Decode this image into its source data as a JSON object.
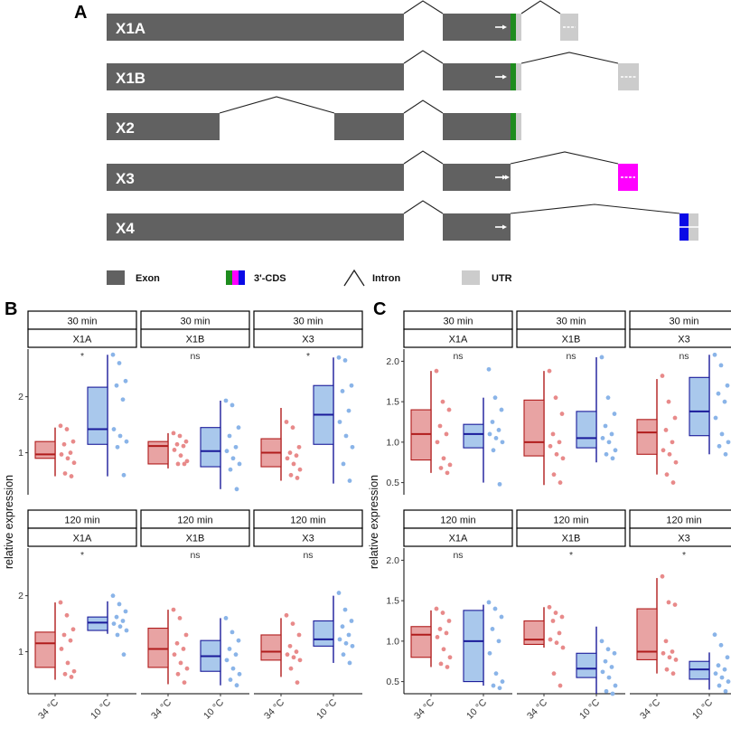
{
  "panel_a": {
    "letter": "A",
    "isoforms": [
      {
        "label": "X1A",
        "cds": [
          "#1e8c1e"
        ],
        "utr": true,
        "arrows": "single",
        "utr_arrow": true
      },
      {
        "label": "X1B",
        "cds": [
          "#1e8c1e"
        ],
        "utr": true,
        "arrows": "single",
        "utr_arrow": true
      },
      {
        "label": "X2",
        "cds": [
          "#1e8c1e"
        ],
        "utr": true,
        "arrows": "none",
        "utr_arrow": false
      },
      {
        "label": "X3",
        "cds": [
          "#ff00ff"
        ],
        "utr": false,
        "arrows": "double",
        "utr_arrow": true
      },
      {
        "label": "X4",
        "cds": [
          "#0a0ae6"
        ],
        "utr": true,
        "arrows": "single",
        "utr_arrow": false
      }
    ],
    "legend": {
      "exon": "Exon",
      "cds": "3'-CDS",
      "intron": "Intron",
      "utr": "UTR"
    },
    "colors": {
      "exon": "#616161",
      "utr": "#cccccc",
      "green": "#1e8c1e",
      "magenta": "#ff00ff",
      "blue": "#0a0ae6"
    }
  },
  "chart_data": [
    {
      "panel": "B",
      "type": "box",
      "ylabel": "relative expression",
      "conditions": [
        "34 °C",
        "10 °C"
      ],
      "colors": {
        "34 °C": {
          "fill": "#e8a3a3",
          "line": "#b01c1c",
          "dots": "#e88a8a"
        },
        "10 °C": {
          "fill": "#a9c8ec",
          "line": "#1a1a9a",
          "dots": "#8ab4e8"
        }
      },
      "facets": [
        {
          "time": "30 min",
          "isoform": "X1A",
          "sig": "*",
          "ylim": [
            0.25,
            2.85
          ],
          "yticks": [
            1,
            2
          ],
          "boxes": [
            {
              "q1": 0.9,
              "med": 0.97,
              "q3": 1.2,
              "lo": 0.58,
              "hi": 1.45,
              "pts": [
                1.48,
                1.42,
                1.2,
                1.15,
                1.0,
                0.97,
                0.9,
                0.82,
                0.63,
                0.58
              ]
            },
            {
              "q1": 1.15,
              "med": 1.42,
              "q3": 2.17,
              "lo": 0.58,
              "hi": 2.75,
              "pts": [
                2.75,
                2.6,
                2.28,
                2.2,
                1.95,
                1.42,
                1.3,
                1.2,
                1.1,
                0.6
              ]
            }
          ]
        },
        {
          "time": "30 min",
          "isoform": "X1B",
          "sig": "ns",
          "ylim": [
            0.25,
            2.85
          ],
          "yticks": [
            1,
            2
          ],
          "boxes": [
            {
              "q1": 0.8,
              "med": 1.12,
              "q3": 1.2,
              "lo": 0.72,
              "hi": 1.35,
              "pts": [
                1.35,
                1.3,
                1.2,
                1.15,
                1.12,
                1.05,
                0.95,
                0.85,
                0.8,
                0.8
              ]
            },
            {
              "q1": 0.75,
              "med": 1.03,
              "q3": 1.45,
              "lo": 0.35,
              "hi": 1.93,
              "pts": [
                1.93,
                1.85,
                1.45,
                1.3,
                1.1,
                1.03,
                0.9,
                0.8,
                0.7,
                0.35
              ]
            }
          ]
        },
        {
          "time": "30 min",
          "isoform": "X3",
          "sig": "*",
          "ylim": [
            0.25,
            2.85
          ],
          "yticks": [
            1,
            2
          ],
          "boxes": [
            {
              "q1": 0.75,
              "med": 1.0,
              "q3": 1.25,
              "lo": 0.5,
              "hi": 1.8,
              "pts": [
                1.55,
                1.45,
                1.1,
                1.0,
                0.95,
                0.9,
                0.8,
                0.7,
                0.6,
                0.55
              ]
            },
            {
              "q1": 1.15,
              "med": 1.68,
              "q3": 2.2,
              "lo": 0.45,
              "hi": 2.7,
              "pts": [
                2.7,
                2.65,
                2.2,
                2.1,
                1.75,
                1.55,
                1.3,
                1.1,
                0.8,
                0.5
              ]
            }
          ]
        },
        {
          "time": "120 min",
          "isoform": "X1A",
          "sig": "*",
          "ylim": [
            0.25,
            2.85
          ],
          "yticks": [
            1,
            2
          ],
          "boxes": [
            {
              "q1": 0.72,
              "med": 1.15,
              "q3": 1.35,
              "lo": 0.5,
              "hi": 1.88,
              "pts": [
                1.88,
                1.65,
                1.4,
                1.3,
                1.2,
                1.05,
                0.8,
                0.65,
                0.6,
                0.55
              ]
            },
            {
              "q1": 1.38,
              "med": 1.52,
              "q3": 1.62,
              "lo": 1.32,
              "hi": 1.9,
              "pts": [
                2.0,
                1.85,
                1.72,
                1.62,
                1.55,
                1.5,
                1.45,
                1.38,
                1.3,
                0.95
              ]
            }
          ]
        },
        {
          "time": "120 min",
          "isoform": "X1B",
          "sig": "ns",
          "ylim": [
            0.25,
            2.85
          ],
          "yticks": [
            1,
            2
          ],
          "boxes": [
            {
              "q1": 0.72,
              "med": 1.05,
              "q3": 1.42,
              "lo": 0.42,
              "hi": 1.75,
              "pts": [
                1.75,
                1.6,
                1.3,
                1.15,
                1.05,
                0.95,
                0.8,
                0.7,
                0.6,
                0.45
              ]
            },
            {
              "q1": 0.65,
              "med": 0.92,
              "q3": 1.2,
              "lo": 0.4,
              "hi": 1.6,
              "pts": [
                1.6,
                1.35,
                1.2,
                1.05,
                0.95,
                0.85,
                0.7,
                0.6,
                0.5,
                0.4
              ]
            }
          ]
        },
        {
          "time": "120 min",
          "isoform": "X3",
          "sig": "ns",
          "ylim": [
            0.25,
            2.85
          ],
          "yticks": [
            1,
            2
          ],
          "boxes": [
            {
              "q1": 0.85,
              "med": 1.0,
              "q3": 1.3,
              "lo": 0.55,
              "hi": 1.6,
              "pts": [
                1.65,
                1.5,
                1.3,
                1.1,
                1.0,
                0.95,
                0.9,
                0.85,
                0.7,
                0.45
              ]
            },
            {
              "q1": 1.1,
              "med": 1.22,
              "q3": 1.55,
              "lo": 0.8,
              "hi": 2.0,
              "pts": [
                2.05,
                1.75,
                1.55,
                1.45,
                1.3,
                1.22,
                1.15,
                1.1,
                0.95,
                0.8
              ]
            }
          ]
        }
      ]
    },
    {
      "panel": "C",
      "type": "box",
      "ylabel": "relative expression",
      "conditions": [
        "34 °C",
        "10 °C"
      ],
      "colors": {
        "34 °C": {
          "fill": "#e8a3a3",
          "line": "#b01c1c",
          "dots": "#e88a8a"
        },
        "10 °C": {
          "fill": "#a9c8ec",
          "line": "#1a1a9a",
          "dots": "#8ab4e8"
        }
      },
      "facets": [
        {
          "time": "30 min",
          "isoform": "X1A",
          "sig": "ns",
          "ylim": [
            0.35,
            2.15
          ],
          "yticks": [
            0.5,
            1.0,
            1.5,
            2.0
          ],
          "boxes": [
            {
              "q1": 0.78,
              "med": 1.1,
              "q3": 1.4,
              "lo": 0.62,
              "hi": 1.88,
              "pts": [
                1.88,
                1.5,
                1.4,
                1.2,
                1.1,
                1.0,
                0.8,
                0.72,
                0.68,
                0.62
              ]
            },
            {
              "q1": 0.93,
              "med": 1.1,
              "q3": 1.22,
              "lo": 0.5,
              "hi": 1.55,
              "pts": [
                1.9,
                1.55,
                1.4,
                1.25,
                1.15,
                1.1,
                1.05,
                1.0,
                0.9,
                0.48
              ]
            }
          ]
        },
        {
          "time": "30 min",
          "isoform": "X1B",
          "sig": "ns",
          "ylim": [
            0.35,
            2.15
          ],
          "yticks": [
            0.5,
            1.0,
            1.5,
            2.0
          ],
          "boxes": [
            {
              "q1": 0.83,
              "med": 1.0,
              "q3": 1.52,
              "lo": 0.47,
              "hi": 1.88,
              "pts": [
                1.88,
                1.55,
                1.35,
                1.1,
                1.0,
                0.95,
                0.85,
                0.8,
                0.6,
                0.5
              ]
            },
            {
              "q1": 0.93,
              "med": 1.05,
              "q3": 1.38,
              "lo": 0.75,
              "hi": 2.05,
              "pts": [
                2.05,
                1.55,
                1.35,
                1.2,
                1.1,
                1.05,
                1.0,
                0.9,
                0.85,
                0.8
              ]
            }
          ]
        },
        {
          "time": "30 min",
          "isoform": "X3",
          "sig": "ns",
          "ylim": [
            0.35,
            2.15
          ],
          "yticks": [
            0.5,
            1.0,
            1.5,
            2.0
          ],
          "boxes": [
            {
              "q1": 0.85,
              "med": 1.12,
              "q3": 1.28,
              "lo": 0.6,
              "hi": 1.78,
              "pts": [
                1.82,
                1.5,
                1.3,
                1.15,
                1.0,
                0.9,
                0.85,
                0.75,
                0.6,
                0.5
              ]
            },
            {
              "q1": 1.08,
              "med": 1.38,
              "q3": 1.8,
              "lo": 0.85,
              "hi": 2.08,
              "pts": [
                2.08,
                1.95,
                1.7,
                1.6,
                1.5,
                1.3,
                1.1,
                1.0,
                0.95,
                0.85
              ]
            }
          ]
        },
        {
          "time": "120 min",
          "isoform": "X1A",
          "sig": "ns",
          "ylim": [
            0.35,
            2.15
          ],
          "yticks": [
            0.5,
            1.0,
            1.5,
            2.0
          ],
          "boxes": [
            {
              "q1": 0.8,
              "med": 1.08,
              "q3": 1.18,
              "lo": 0.68,
              "hi": 1.38,
              "pts": [
                1.4,
                1.35,
                1.25,
                1.15,
                1.1,
                1.05,
                0.9,
                0.8,
                0.72,
                0.68
              ]
            },
            {
              "q1": 0.5,
              "med": 1.0,
              "q3": 1.38,
              "lo": 0.45,
              "hi": 1.45,
              "pts": [
                1.48,
                1.4,
                1.3,
                1.15,
                1.0,
                0.85,
                0.6,
                0.5,
                0.45,
                0.42
              ]
            }
          ]
        },
        {
          "time": "120 min",
          "isoform": "X1B",
          "sig": "*",
          "ylim": [
            0.35,
            2.15
          ],
          "yticks": [
            0.5,
            1.0,
            1.5,
            2.0
          ],
          "boxes": [
            {
              "q1": 0.96,
              "med": 1.02,
              "q3": 1.25,
              "lo": 0.92,
              "hi": 1.42,
              "pts": [
                1.42,
                1.35,
                1.3,
                1.25,
                1.1,
                1.02,
                0.98,
                0.92,
                0.6,
                0.45
              ]
            },
            {
              "q1": 0.55,
              "med": 0.66,
              "q3": 0.85,
              "lo": 0.35,
              "hi": 1.18,
              "pts": [
                1.0,
                0.9,
                0.85,
                0.75,
                0.68,
                0.62,
                0.55,
                0.45,
                0.38,
                0.35
              ]
            }
          ]
        },
        {
          "time": "120 min",
          "isoform": "X3",
          "sig": "*",
          "ylim": [
            0.35,
            2.15
          ],
          "yticks": [
            0.5,
            1.0,
            1.5,
            2.0
          ],
          "boxes": [
            {
              "q1": 0.77,
              "med": 0.87,
              "q3": 1.4,
              "lo": 0.6,
              "hi": 1.78,
              "pts": [
                1.8,
                1.48,
                1.45,
                1.0,
                0.87,
                0.85,
                0.8,
                0.77,
                0.65,
                0.6
              ]
            },
            {
              "q1": 0.53,
              "med": 0.65,
              "q3": 0.75,
              "lo": 0.4,
              "hi": 0.86,
              "pts": [
                1.08,
                0.95,
                0.8,
                0.7,
                0.65,
                0.6,
                0.55,
                0.5,
                0.45,
                0.38
              ]
            }
          ]
        }
      ]
    }
  ]
}
